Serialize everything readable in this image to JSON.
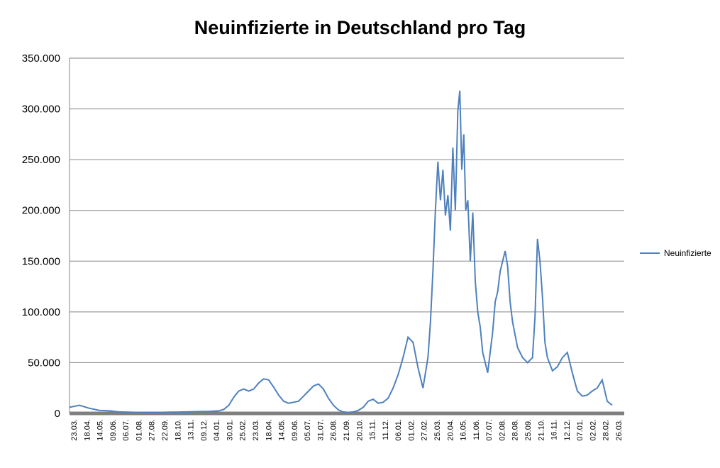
{
  "chart_data": {
    "type": "line",
    "title": "Neuinfizierte in Deutschland pro Tag",
    "xlabel": "",
    "ylabel": "",
    "ylim": [
      0,
      350000
    ],
    "y_ticks": [
      "0",
      "50.000",
      "100.000",
      "150.000",
      "200.000",
      "250.000",
      "300.000",
      "350.000"
    ],
    "grid": true,
    "legend_position": "right",
    "series_color": "#4F81BD",
    "x_tick_labels": [
      "23.03.",
      "18.04.",
      "14.05.",
      "09.06.",
      "06.07.",
      "01.08.",
      "27.08.",
      "22.09.",
      "18.10.",
      "13.11.",
      "09.12.",
      "04.01.",
      "30.01.",
      "25.02.",
      "23.03.",
      "18.04.",
      "14.05.",
      "09.06.",
      "05.07.",
      "31.07.",
      "26.08.",
      "21.09.",
      "20.10.",
      "15.11.",
      "11.12.",
      "06.01.",
      "01.02.",
      "27.02.",
      "25.03.",
      "20.04.",
      "16.05.",
      "11.06.",
      "07.07.",
      "02.08.",
      "28.08.",
      "25.09.",
      "21.10.",
      "16.11.",
      "12.12.",
      "07.01.",
      "02.02.",
      "28.02.",
      "26.03."
    ],
    "series": [
      {
        "name": "Neuinfizierte",
        "points": [
          [
            0,
            6000
          ],
          [
            2,
            8000
          ],
          [
            4,
            5000
          ],
          [
            6,
            3000
          ],
          [
            8,
            2500
          ],
          [
            10,
            1500
          ],
          [
            12,
            1200
          ],
          [
            14,
            1000
          ],
          [
            16,
            900
          ],
          [
            18,
            1000
          ],
          [
            20,
            1200
          ],
          [
            22,
            1300
          ],
          [
            24,
            1600
          ],
          [
            26,
            1800
          ],
          [
            28,
            2000
          ],
          [
            30,
            2500
          ],
          [
            31,
            4000
          ],
          [
            32,
            8000
          ],
          [
            33,
            16000
          ],
          [
            34,
            22000
          ],
          [
            35,
            24000
          ],
          [
            36,
            22000
          ],
          [
            37,
            24000
          ],
          [
            38,
            30000
          ],
          [
            39,
            34000
          ],
          [
            40,
            33000
          ],
          [
            41,
            26000
          ],
          [
            42,
            18000
          ],
          [
            43,
            12000
          ],
          [
            44,
            10000
          ],
          [
            45,
            11000
          ],
          [
            46,
            12000
          ],
          [
            47,
            17000
          ],
          [
            48,
            22000
          ],
          [
            49,
            27000
          ],
          [
            50,
            29000
          ],
          [
            51,
            24000
          ],
          [
            52,
            15000
          ],
          [
            53,
            8000
          ],
          [
            54,
            3500
          ],
          [
            55,
            1500
          ],
          [
            56,
            1000
          ],
          [
            57,
            1500
          ],
          [
            58,
            3000
          ],
          [
            59,
            6000
          ],
          [
            60,
            12000
          ],
          [
            61,
            14000
          ],
          [
            62,
            10000
          ],
          [
            63,
            11000
          ],
          [
            64,
            15000
          ],
          [
            65,
            25000
          ],
          [
            66,
            38000
          ],
          [
            67,
            55000
          ],
          [
            68,
            75000
          ],
          [
            69,
            70000
          ],
          [
            70,
            45000
          ],
          [
            71,
            25000
          ],
          [
            72,
            55000
          ],
          [
            72.5,
            90000
          ],
          [
            73,
            140000
          ],
          [
            73.5,
            200000
          ],
          [
            74,
            248000
          ],
          [
            74.5,
            210000
          ],
          [
            75,
            240000
          ],
          [
            75.5,
            195000
          ],
          [
            76,
            215000
          ],
          [
            76.5,
            180000
          ],
          [
            77,
            262000
          ],
          [
            77.5,
            200000
          ],
          [
            78,
            298000
          ],
          [
            78.4,
            318000
          ],
          [
            78.8,
            240000
          ],
          [
            79.2,
            275000
          ],
          [
            79.6,
            200000
          ],
          [
            80,
            210000
          ],
          [
            80.5,
            150000
          ],
          [
            81,
            198000
          ],
          [
            81.5,
            130000
          ],
          [
            82,
            100000
          ],
          [
            82.5,
            85000
          ],
          [
            83,
            60000
          ],
          [
            84,
            40000
          ],
          [
            85,
            80000
          ],
          [
            85.5,
            110000
          ],
          [
            86,
            120000
          ],
          [
            86.5,
            140000
          ],
          [
            87,
            150000
          ],
          [
            87.5,
            160000
          ],
          [
            88,
            145000
          ],
          [
            88.5,
            110000
          ],
          [
            89,
            90000
          ],
          [
            90,
            65000
          ],
          [
            91,
            55000
          ],
          [
            92,
            50000
          ],
          [
            93,
            55000
          ],
          [
            93.5,
            95000
          ],
          [
            94,
            172000
          ],
          [
            94.5,
            150000
          ],
          [
            95,
            115000
          ],
          [
            95.5,
            70000
          ],
          [
            96,
            55000
          ],
          [
            97,
            42000
          ],
          [
            98,
            46000
          ],
          [
            99,
            55000
          ],
          [
            100,
            60000
          ],
          [
            101,
            40000
          ],
          [
            102,
            22000
          ],
          [
            103,
            17000
          ],
          [
            104,
            18000
          ],
          [
            105,
            22000
          ],
          [
            106,
            25000
          ],
          [
            107,
            33000
          ],
          [
            108,
            12000
          ],
          [
            109,
            8000
          ]
        ],
        "x_span": [
          0,
          110
        ]
      }
    ]
  }
}
